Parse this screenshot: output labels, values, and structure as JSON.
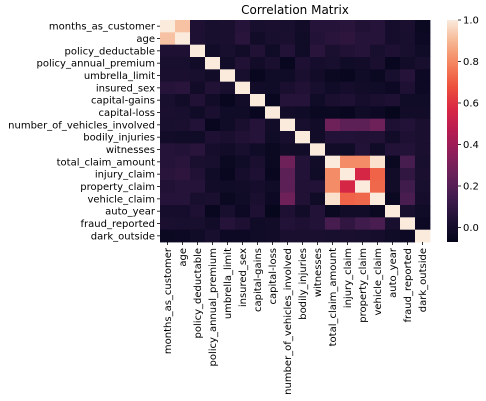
{
  "chart_data": {
    "type": "heatmap",
    "title": "Correlation Matrix",
    "labels": [
      "months_as_customer",
      "age",
      "policy_deductable",
      "policy_annual_premium",
      "umbrella_limit",
      "insured_sex",
      "capital-gains",
      "capital-loss",
      "number_of_vehicles_involved",
      "bodily_injuries",
      "witnesses",
      "total_claim_amount",
      "injury_claim",
      "property_claim",
      "vehicle_claim",
      "auto_year",
      "fraud_reported",
      "dark_outside"
    ],
    "matrix": [
      [
        1.0,
        0.92,
        0.03,
        0.01,
        0.02,
        0.06,
        0.01,
        0.02,
        0.01,
        -0.01,
        0.06,
        0.06,
        0.07,
        0.04,
        0.06,
        0.0,
        0.02,
        -0.04
      ],
      [
        0.92,
        1.0,
        0.03,
        0.01,
        0.02,
        0.07,
        -0.01,
        0.01,
        0.02,
        -0.02,
        0.05,
        0.07,
        0.08,
        0.06,
        0.06,
        0.0,
        0.01,
        -0.03
      ],
      [
        0.03,
        0.03,
        1.0,
        -0.01,
        0.01,
        -0.01,
        0.04,
        -0.02,
        0.05,
        -0.02,
        0.07,
        0.02,
        0.04,
        0.06,
        0.01,
        0.03,
        0.01,
        -0.02
      ],
      [
        0.01,
        0.01,
        -0.01,
        1.0,
        -0.01,
        0.04,
        -0.01,
        0.02,
        -0.05,
        0.03,
        0.0,
        0.01,
        -0.02,
        -0.01,
        0.02,
        -0.05,
        -0.01,
        0.01
      ],
      [
        0.02,
        0.02,
        0.01,
        -0.01,
        1.0,
        0.01,
        -0.05,
        -0.02,
        -0.02,
        0.02,
        -0.01,
        -0.04,
        -0.05,
        -0.02,
        -0.04,
        0.01,
        0.06,
        -0.03
      ],
      [
        0.06,
        0.07,
        -0.01,
        0.04,
        0.01,
        1.0,
        -0.01,
        -0.02,
        0.02,
        0.04,
        0.01,
        -0.02,
        0.0,
        -0.01,
        -0.02,
        -0.03,
        0.03,
        -0.03
      ],
      [
        0.01,
        -0.01,
        0.04,
        -0.01,
        -0.05,
        -0.01,
        1.0,
        -0.05,
        0.06,
        0.06,
        -0.02,
        0.02,
        0.03,
        0.0,
        0.02,
        0.03,
        -0.02,
        -0.02
      ],
      [
        0.02,
        0.01,
        -0.02,
        0.02,
        -0.02,
        -0.02,
        -0.05,
        1.0,
        -0.01,
        -0.02,
        -0.04,
        -0.04,
        -0.05,
        -0.02,
        -0.03,
        -0.06,
        -0.01,
        -0.01
      ],
      [
        0.01,
        0.02,
        0.05,
        -0.05,
        -0.02,
        0.02,
        0.06,
        -0.01,
        1.0,
        0.01,
        -0.01,
        0.27,
        0.22,
        0.22,
        0.27,
        0.03,
        0.05,
        0.02
      ],
      [
        -0.01,
        -0.02,
        -0.02,
        0.03,
        0.02,
        0.04,
        0.06,
        -0.02,
        0.01,
        1.0,
        -0.01,
        0.05,
        0.05,
        0.04,
        0.04,
        -0.01,
        0.03,
        0.02
      ],
      [
        0.06,
        0.05,
        0.07,
        0.0,
        -0.01,
        0.01,
        -0.02,
        -0.04,
        -0.01,
        -0.01,
        1.0,
        -0.01,
        -0.02,
        0.05,
        -0.02,
        0.05,
        0.05,
        0.02
      ],
      [
        0.06,
        0.07,
        0.02,
        0.01,
        -0.04,
        -0.02,
        0.02,
        -0.04,
        0.27,
        0.05,
        -0.01,
        1.0,
        0.81,
        0.81,
        0.98,
        -0.04,
        0.16,
        0.01
      ],
      [
        0.07,
        0.08,
        0.04,
        -0.02,
        -0.05,
        0.0,
        0.03,
        -0.05,
        0.22,
        0.05,
        -0.02,
        0.81,
        1.0,
        0.56,
        0.72,
        -0.01,
        0.09,
        0.02
      ],
      [
        0.04,
        0.06,
        0.06,
        -0.01,
        -0.02,
        -0.01,
        0.0,
        -0.02,
        0.22,
        0.04,
        0.05,
        0.81,
        0.56,
        1.0,
        0.73,
        -0.01,
        0.14,
        0.01
      ],
      [
        0.06,
        0.06,
        0.01,
        0.02,
        -0.04,
        -0.02,
        0.02,
        -0.03,
        0.27,
        0.04,
        -0.02,
        0.98,
        0.72,
        0.73,
        1.0,
        -0.04,
        0.17,
        0.0
      ],
      [
        0.0,
        0.0,
        0.03,
        -0.05,
        0.01,
        -0.03,
        0.03,
        -0.06,
        0.03,
        -0.01,
        0.05,
        -0.04,
        -0.01,
        -0.01,
        -0.04,
        1.0,
        0.01,
        -0.02
      ],
      [
        0.02,
        0.01,
        0.01,
        -0.01,
        0.06,
        0.03,
        -0.02,
        -0.01,
        0.05,
        0.03,
        0.05,
        0.16,
        0.09,
        0.14,
        0.17,
        0.01,
        1.0,
        -0.03
      ],
      [
        -0.04,
        -0.03,
        -0.02,
        0.01,
        -0.03,
        -0.03,
        -0.02,
        -0.01,
        0.02,
        0.02,
        0.02,
        0.01,
        0.02,
        0.01,
        0.0,
        -0.02,
        -0.03,
        1.0
      ]
    ],
    "vmin": -0.07,
    "vmax": 1.0,
    "colorbar_ticks": [
      "0.0",
      "0.2",
      "0.4",
      "0.6",
      "0.8",
      "1.0"
    ],
    "colorbar_values": [
      0.0,
      0.2,
      0.4,
      0.6,
      0.8,
      1.0
    ],
    "colormap": "rocket",
    "xlabel": "",
    "ylabel": ""
  }
}
